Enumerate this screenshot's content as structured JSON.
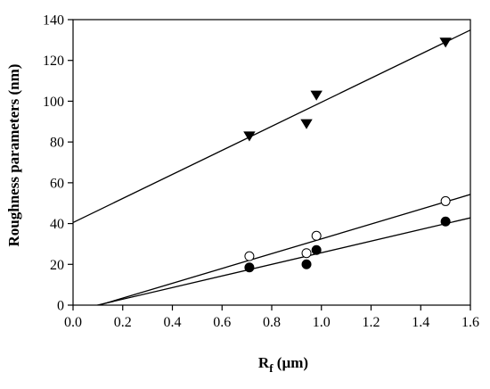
{
  "chart_data": {
    "type": "scatter",
    "xlabel": "R",
    "xlabel_subscript": "f",
    "xlabel_unit": " (µm)",
    "ylabel": "Roughness parameters (nm)",
    "xlim": [
      0.0,
      1.6
    ],
    "ylim": [
      0,
      140
    ],
    "xticks": [
      0.0,
      0.2,
      0.4,
      0.6,
      0.8,
      1.0,
      1.2,
      1.4,
      1.6
    ],
    "xtick_labels": [
      "0.0",
      "0.2",
      "0.4",
      "0.6",
      "0.8",
      "1.0",
      "1.2",
      "1.4",
      "1.6"
    ],
    "yticks": [
      0,
      20,
      40,
      60,
      80,
      100,
      120,
      140
    ],
    "ytick_labels": [
      "0",
      "20",
      "40",
      "60",
      "80",
      "100",
      "120",
      "140"
    ],
    "grid": false,
    "series": [
      {
        "marker": "triangle-down",
        "color": "#000000",
        "points": [
          [
            0.71,
            83
          ],
          [
            0.94,
            89
          ],
          [
            0.98,
            103
          ],
          [
            1.5,
            129
          ]
        ],
        "fit_line": {
          "intercept": 40.5,
          "slope": 59.0
        }
      },
      {
        "marker": "circle-open",
        "color": "#000000",
        "points": [
          [
            0.71,
            24
          ],
          [
            0.94,
            25.5
          ],
          [
            0.98,
            34
          ],
          [
            1.5,
            51
          ]
        ],
        "fit_line": {
          "intercept": -3.8,
          "slope": 36.3
        }
      },
      {
        "marker": "circle-filled",
        "color": "#000000",
        "points": [
          [
            0.71,
            18.5
          ],
          [
            0.94,
            20
          ],
          [
            0.98,
            27
          ],
          [
            1.5,
            41
          ]
        ],
        "fit_line": {
          "intercept": -2.8,
          "slope": 28.5
        }
      }
    ]
  }
}
